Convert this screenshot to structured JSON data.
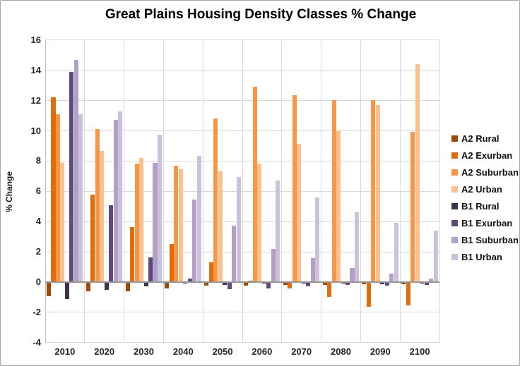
{
  "title": "Great Plains Housing Density Classes % Change",
  "chart_data": {
    "type": "bar",
    "title": "Great Plains Housing Density Classes % Change",
    "xlabel": "",
    "ylabel": "% Change",
    "ylim": [
      -4,
      16
    ],
    "ytick_step": 2,
    "grid": true,
    "legend_position": "right",
    "categories": [
      "2010",
      "2020",
      "2030",
      "2040",
      "2050",
      "2060",
      "2070",
      "2080",
      "2090",
      "2100"
    ],
    "series": [
      {
        "name": "A2 Rural",
        "color": "#9d4a06",
        "values": [
          -0.95,
          -0.6,
          -0.6,
          -0.4,
          -0.25,
          -0.25,
          -0.2,
          -0.2,
          -0.15,
          -0.15
        ]
      },
      {
        "name": "A2 Exurban",
        "color": "#e36c0a",
        "values": [
          12.2,
          5.8,
          3.65,
          2.5,
          1.3,
          0.1,
          -0.4,
          -1.0,
          -1.65,
          -1.55
        ]
      },
      {
        "name": "A2 Suburban",
        "color": "#f79646",
        "values": [
          11.1,
          10.1,
          7.85,
          7.7,
          10.8,
          12.9,
          12.35,
          12.05,
          12.05,
          9.95
        ]
      },
      {
        "name": "A2 Urban",
        "color": "#fbc08e",
        "values": [
          7.9,
          8.65,
          8.2,
          7.45,
          7.3,
          7.85,
          9.15,
          10.0,
          11.7,
          14.4
        ]
      },
      {
        "name": "B1 Rural",
        "color": "#403152",
        "values": [
          -1.1,
          -0.5,
          -0.3,
          -0.1,
          -0.2,
          -0.1,
          -0.1,
          -0.1,
          -0.15,
          -0.1
        ]
      },
      {
        "name": "B1 Exurban",
        "color": "#604a7b",
        "values": [
          13.9,
          5.1,
          1.65,
          0.25,
          -0.45,
          -0.4,
          -0.3,
          -0.2,
          -0.25,
          -0.2
        ]
      },
      {
        "name": "B1 Suburban",
        "color": "#b2a1c7",
        "values": [
          14.7,
          10.7,
          7.9,
          5.45,
          3.75,
          2.2,
          1.6,
          0.95,
          0.55,
          0.25
        ]
      },
      {
        "name": "B1 Urban",
        "color": "#ccc1da",
        "values": [
          11.1,
          11.3,
          9.75,
          8.35,
          6.95,
          6.7,
          5.6,
          4.6,
          3.9,
          3.4
        ]
      }
    ]
  }
}
